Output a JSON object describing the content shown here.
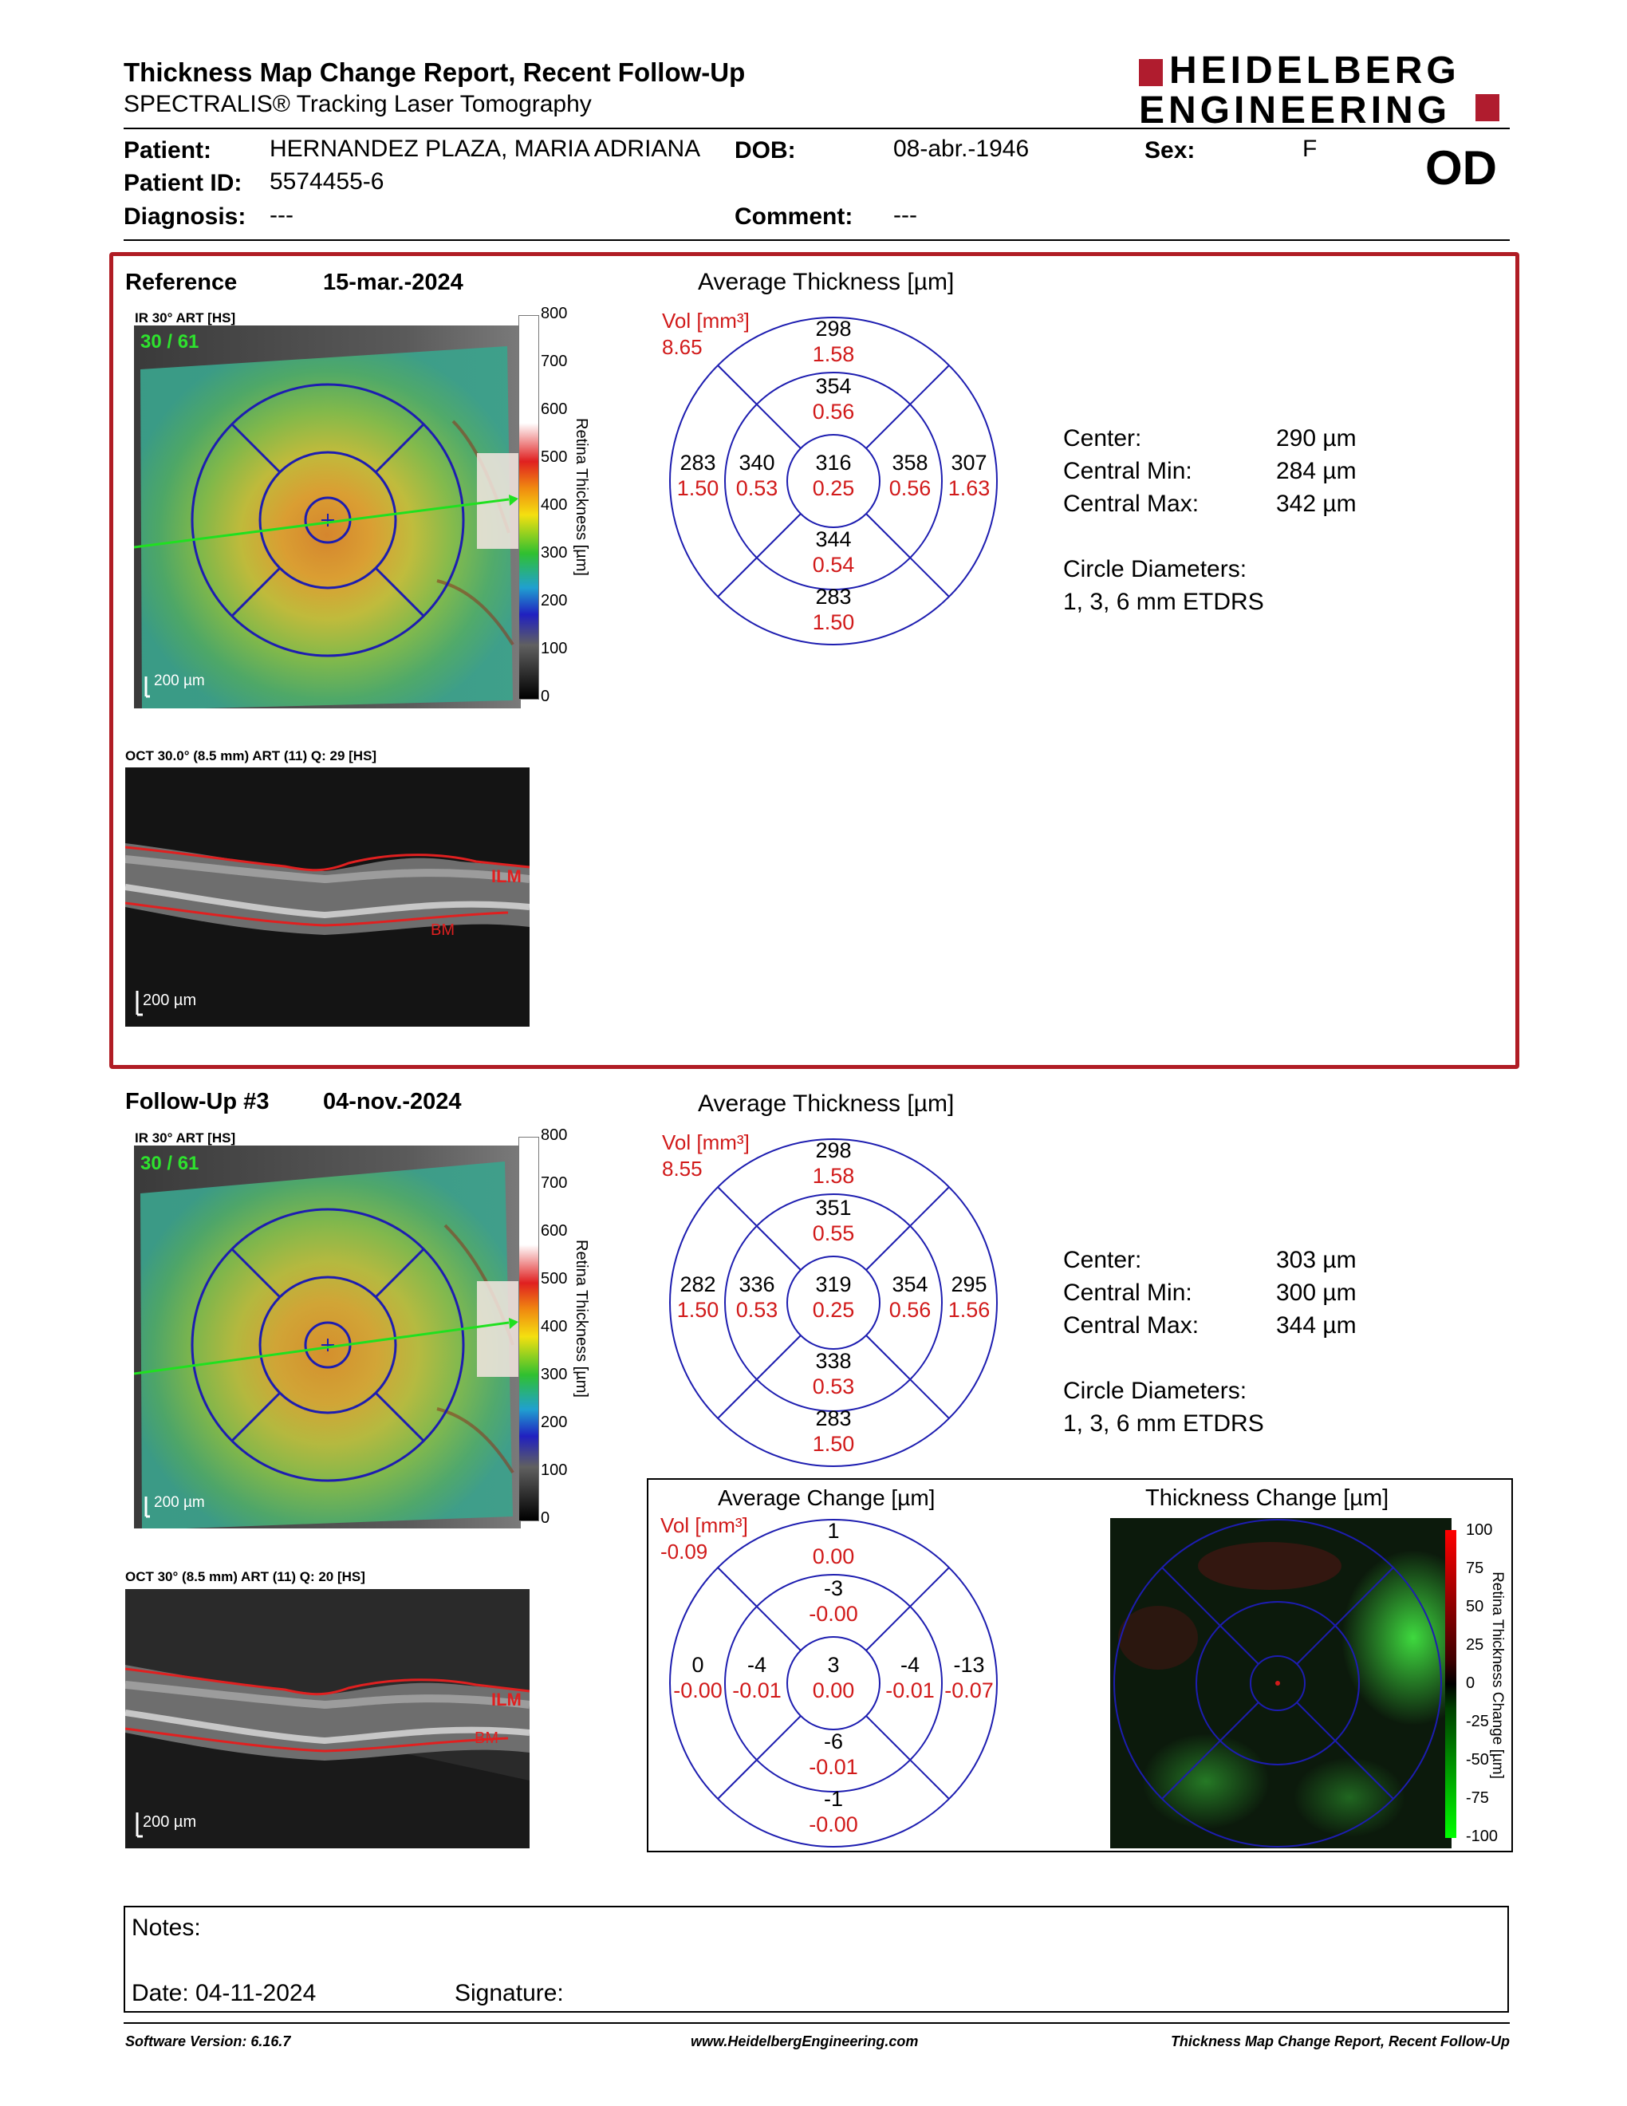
{
  "header": {
    "title": "Thickness Map Change Report, Recent Follow-Up",
    "subtitle": "SPECTRALIS® Tracking Laser Tomography",
    "logo_line1": "HEIDELBERG",
    "logo_line2": "ENGINEERING"
  },
  "patient": {
    "patient_label": "Patient:",
    "patient_name": "HERNANDEZ PLAZA, MARIA ADRIANA",
    "dob_label": "DOB:",
    "dob": "08-abr.-1946",
    "sex_label": "Sex:",
    "sex": "F",
    "eye": "OD",
    "id_label": "Patient ID:",
    "id": "5574455-6",
    "diagnosis_label": "Diagnosis:",
    "diagnosis": "---",
    "comment_label": "Comment:",
    "comment": "---"
  },
  "reference": {
    "label": "Reference",
    "date": "15-mar.-2024",
    "ir_caption": "IR 30° ART [HS]",
    "ir_counter": "30 / 61",
    "ir_scale": "200 µm",
    "oct_caption": "OCT 30.0° (8.5 mm) ART (11) Q: 29 [HS]",
    "oct_scale": "200 µm",
    "ilm": "ILM",
    "bm": "BM",
    "colorbar_ticks": [
      "800",
      "700",
      "600",
      "500",
      "400",
      "300",
      "200",
      "100",
      "0"
    ],
    "colorbar_label": "Retina Thickness [µm]",
    "etdrs_title": "Average Thickness [µm]",
    "vol_label": "Vol [mm³]",
    "vol_value": "8.65",
    "grid": {
      "center": {
        "t": "316",
        "v": "0.25"
      },
      "inner_sup": {
        "t": "354",
        "v": "0.56"
      },
      "inner_inf": {
        "t": "344",
        "v": "0.54"
      },
      "inner_nasal": {
        "t": "340",
        "v": "0.53"
      },
      "inner_temporal": {
        "t": "358",
        "v": "0.56"
      },
      "outer_sup": {
        "t": "298",
        "v": "1.58"
      },
      "outer_inf": {
        "t": "283",
        "v": "1.50"
      },
      "outer_nasal": {
        "t": "283",
        "v": "1.50"
      },
      "outer_temporal": {
        "t": "307",
        "v": "1.63"
      }
    },
    "stats": {
      "center_label": "Center:",
      "center": "290 µm",
      "min_label": "Central Min:",
      "min": "284 µm",
      "max_label": "Central Max:",
      "max": "342 µm",
      "circ_label": "Circle Diameters:",
      "circ": "1, 3, 6 mm ETDRS"
    }
  },
  "followup": {
    "label": "Follow-Up #3",
    "date": "04-nov.-2024",
    "ir_caption": "IR 30° ART [HS]",
    "ir_counter": "30 / 61",
    "ir_scale": "200 µm",
    "oct_caption": "OCT 30° (8.5 mm) ART (11) Q: 20 [HS]",
    "oct_scale": "200 µm",
    "ilm": "ILM",
    "bm": "BM",
    "colorbar_ticks": [
      "800",
      "700",
      "600",
      "500",
      "400",
      "300",
      "200",
      "100",
      "0"
    ],
    "colorbar_label": "Retina Thickness [µm]",
    "etdrs_title": "Average Thickness [µm]",
    "vol_label": "Vol [mm³]",
    "vol_value": "8.55",
    "grid": {
      "center": {
        "t": "319",
        "v": "0.25"
      },
      "inner_sup": {
        "t": "351",
        "v": "0.55"
      },
      "inner_inf": {
        "t": "338",
        "v": "0.53"
      },
      "inner_nasal": {
        "t": "336",
        "v": "0.53"
      },
      "inner_temporal": {
        "t": "354",
        "v": "0.56"
      },
      "outer_sup": {
        "t": "298",
        "v": "1.58"
      },
      "outer_inf": {
        "t": "283",
        "v": "1.50"
      },
      "outer_nasal": {
        "t": "282",
        "v": "1.50"
      },
      "outer_temporal": {
        "t": "295",
        "v": "1.56"
      }
    },
    "stats": {
      "center_label": "Center:",
      "center": "303 µm",
      "min_label": "Central Min:",
      "min": "300 µm",
      "max_label": "Central Max:",
      "max": "344 µm",
      "circ_label": "Circle Diameters:",
      "circ": "1, 3, 6 mm ETDRS"
    }
  },
  "change": {
    "etdrs_title": "Average Change [µm]",
    "vol_label": "Vol [mm³]",
    "vol_value": "-0.09",
    "grid": {
      "center": {
        "t": "3",
        "v": "0.00"
      },
      "inner_sup": {
        "t": "-3",
        "v": "-0.00"
      },
      "inner_inf": {
        "t": "-6",
        "v": "-0.01"
      },
      "inner_nasal": {
        "t": "-4",
        "v": "-0.01"
      },
      "inner_temporal": {
        "t": "-4",
        "v": "-0.01"
      },
      "outer_sup": {
        "t": "1",
        "v": "0.00"
      },
      "outer_inf": {
        "t": "-1",
        "v": "-0.00"
      },
      "outer_nasal": {
        "t": "0",
        "v": "-0.00"
      },
      "outer_temporal": {
        "t": "-13",
        "v": "-0.07"
      }
    },
    "map_title": "Thickness Change [µm]",
    "colorbar_ticks": [
      "100",
      "75",
      "50",
      "25",
      "0",
      "-25",
      "-50",
      "-75",
      "-100"
    ],
    "colorbar_label": "Retina Thickness Change [µm]"
  },
  "notes": {
    "notes_label": "Notes:",
    "date_label": "Date: 04-11-2024",
    "signature_label": "Signature:"
  },
  "footer": {
    "software": "Software Version: 6.16.7",
    "website": "www.HeidelbergEngineering.com",
    "report": "Thickness Map Change Report, Recent Follow-Up"
  },
  "colors": {
    "red": "#d11a1a",
    "blue_grid": "#1d1db0",
    "frame_red": "#b01c24",
    "logo_red": "#b01c2e"
  }
}
